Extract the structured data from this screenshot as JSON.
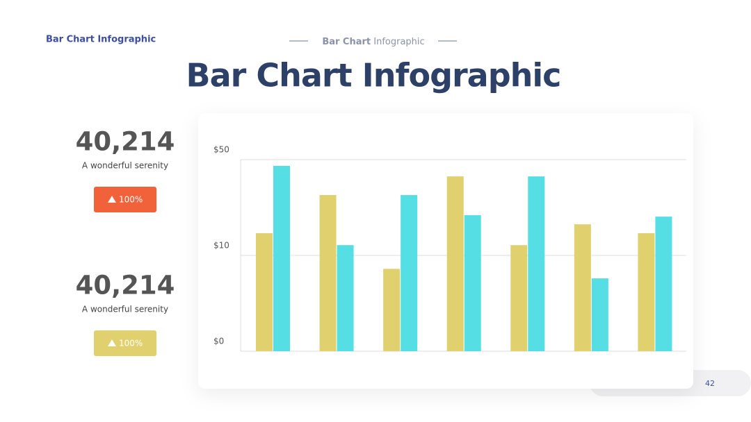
{
  "header": {
    "label": "Bar Chart  Infographic",
    "subtitle_bold": "Bar Chart",
    "subtitle_rest": "Infographic",
    "title": "Bar Chart Infographic"
  },
  "stats": [
    {
      "value": "40,214",
      "caption": "A wonderful serenity",
      "badge": "100%",
      "color": "#f2623a"
    },
    {
      "value": "40,214",
      "caption": "A wonderful serenity",
      "badge": "100%",
      "color": "#e0d06e"
    }
  ],
  "page_number": "42",
  "chart_data": {
    "type": "bar",
    "categories": [
      null,
      null,
      null,
      null,
      null,
      null,
      null
    ],
    "series": [
      {
        "color": "#e0d06e",
        "values": [
          19.3,
          35.2,
          8.6,
          43.0,
          14.3,
          23.0,
          19.3
        ]
      },
      {
        "color": "#55dfe5",
        "values": [
          47.4,
          14.3,
          35.2,
          26.8,
          43.0,
          7.6,
          26.2
        ]
      }
    ],
    "ylim": [
      0,
      50
    ],
    "yticks": [
      {
        "value": 0,
        "label": "$0"
      },
      {
        "value": 10,
        "label": "$10"
      },
      {
        "value": 50,
        "label": "$50"
      }
    ],
    "grid": true
  }
}
